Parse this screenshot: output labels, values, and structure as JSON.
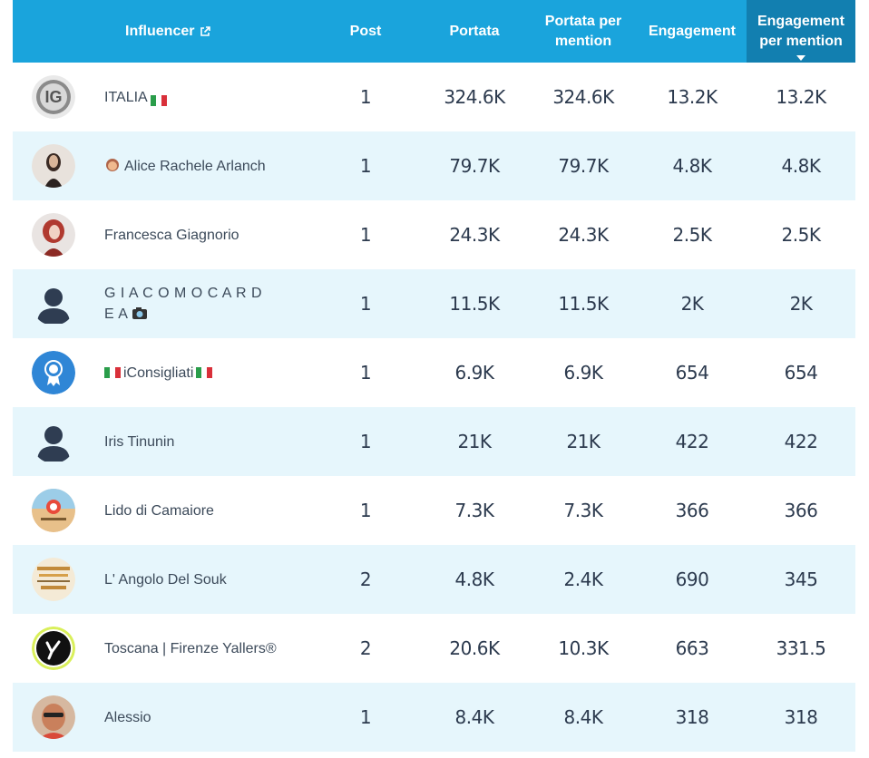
{
  "header": {
    "influencer": "Influencer",
    "post": "Post",
    "portata": "Portata",
    "portata_per_mention": "Portata per mention",
    "engagement": "Engagement",
    "engagement_per_mention": "Engagement per mention"
  },
  "rows": [
    {
      "name": "ITALIA",
      "post": "1",
      "portata": "324.6K",
      "portata_per_mention": "324.6K",
      "engagement": "13.2K",
      "engagement_per_mention": "13.2K"
    },
    {
      "name": "Alice Rachele Arlanch",
      "post": "1",
      "portata": "79.7K",
      "portata_per_mention": "79.7K",
      "engagement": "4.8K",
      "engagement_per_mention": "4.8K"
    },
    {
      "name": "Francesca Giagnorio",
      "post": "1",
      "portata": "24.3K",
      "portata_per_mention": "24.3K",
      "engagement": "2.5K",
      "engagement_per_mention": "2.5K"
    },
    {
      "name": "G I A C O M O C A R D E A",
      "post": "1",
      "portata": "11.5K",
      "portata_per_mention": "11.5K",
      "engagement": "2K",
      "engagement_per_mention": "2K"
    },
    {
      "name": "iConsigliati",
      "post": "1",
      "portata": "6.9K",
      "portata_per_mention": "6.9K",
      "engagement": "654",
      "engagement_per_mention": "654"
    },
    {
      "name": "Iris Tinunin",
      "post": "1",
      "portata": "21K",
      "portata_per_mention": "21K",
      "engagement": "422",
      "engagement_per_mention": "422"
    },
    {
      "name": "Lido di Camaiore",
      "post": "1",
      "portata": "7.3K",
      "portata_per_mention": "7.3K",
      "engagement": "366",
      "engagement_per_mention": "366"
    },
    {
      "name": "L' Angolo Del Souk",
      "post": "2",
      "portata": "4.8K",
      "portata_per_mention": "2.4K",
      "engagement": "690",
      "engagement_per_mention": "345"
    },
    {
      "name": "Toscana | Firenze Yallers®",
      "post": "2",
      "portata": "20.6K",
      "portata_per_mention": "10.3K",
      "engagement": "663",
      "engagement_per_mention": "331.5"
    },
    {
      "name": "Alessio",
      "post": "1",
      "portata": "8.4K",
      "portata_per_mention": "8.4K",
      "engagement": "318",
      "engagement_per_mention": "318"
    }
  ],
  "colors": {
    "header_bg": "#1aa4dc",
    "sorted_header_bg": "#127fb0",
    "alt_row_bg": "#e6f6fc"
  }
}
